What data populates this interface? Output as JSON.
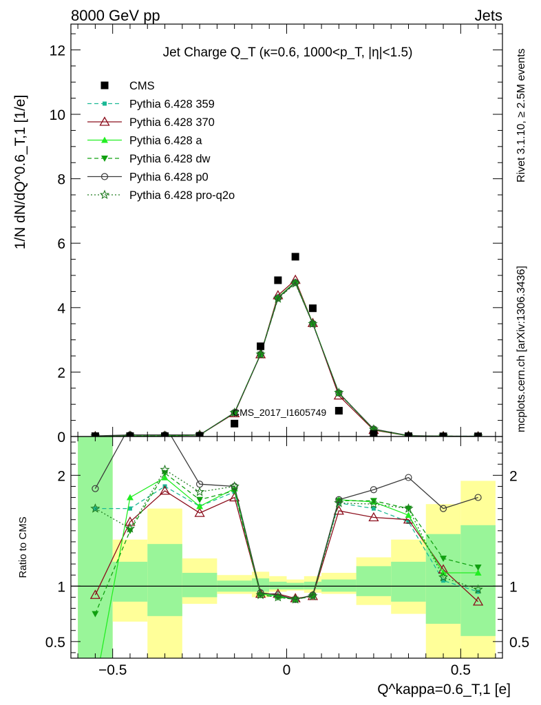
{
  "header": {
    "energy_label": "8000 GeV pp",
    "process_label": "Jets",
    "rivet_label": "Rivet 3.1.10, ≥ 2.5M events",
    "source_label": "mcplots.cern.ch [arXiv:1306.3436]",
    "analysis_id": "CMS_2017_I1605749"
  },
  "chart_data": [
    {
      "type": "scatter",
      "panel": "main",
      "title": "Jet Charge Q_T (κ=0.6, 1000<p_T, |η|<1.5)",
      "ylabel": "1/N dN/dQ^0.6_T,1 [1/e]",
      "xlim": [
        -0.62,
        0.62
      ],
      "ylim": [
        0,
        12.8
      ],
      "yticks": [
        0,
        2,
        4,
        6,
        8,
        10,
        12
      ],
      "xticks": [
        -0.5,
        0,
        0.5
      ],
      "legend_position": "upper-left",
      "x": [
        -0.55,
        -0.45,
        -0.35,
        -0.25,
        -0.15,
        -0.075,
        -0.025,
        0.025,
        0.075,
        0.15,
        0.25,
        0.35,
        0.45,
        0.55
      ],
      "series": [
        {
          "name": "CMS",
          "color": "#000000",
          "marker": "square",
          "values": [
            0.01,
            0.01,
            0.01,
            0.02,
            0.4,
            2.8,
            4.85,
            5.58,
            3.98,
            0.8,
            0.08,
            0.01,
            0.005,
            0.005
          ]
        },
        {
          "name": "Pythia 6.428 359",
          "color": "#1ab894",
          "marker": "small-square",
          "dash": "6,4",
          "values": [
            0.02,
            0.02,
            0.02,
            0.05,
            0.74,
            2.55,
            4.3,
            4.78,
            3.5,
            1.34,
            0.22,
            0.02,
            0.01,
            0.01
          ]
        },
        {
          "name": "Pythia 6.428 370",
          "color": "#8b0d1b",
          "marker": "open-triangle",
          "values": [
            0.01,
            0.02,
            0.02,
            0.05,
            0.72,
            2.55,
            4.38,
            4.86,
            3.52,
            1.27,
            0.2,
            0.02,
            0.01,
            0.005
          ]
        },
        {
          "name": "Pythia 6.428 a",
          "color": "#22ee22",
          "marker": "triangle",
          "values": [
            0.01,
            0.02,
            0.02,
            0.05,
            0.74,
            2.56,
            4.32,
            4.8,
            3.52,
            1.35,
            0.22,
            0.02,
            0.01,
            0.005
          ]
        },
        {
          "name": "Pythia 6.428 dw",
          "color": "#10a010",
          "marker": "triangle-down",
          "dash": "6,4",
          "values": [
            0.01,
            0.02,
            0.02,
            0.05,
            0.73,
            2.55,
            4.28,
            4.77,
            3.5,
            1.35,
            0.22,
            0.02,
            0.01,
            0.005
          ]
        },
        {
          "name": "Pythia 6.428 p0",
          "color": "#3a3a3a",
          "marker": "open-circle",
          "values": [
            0.02,
            0.05,
            0.05,
            0.05,
            0.74,
            2.55,
            4.3,
            4.78,
            3.5,
            1.35,
            0.23,
            0.03,
            0.01,
            0.01
          ]
        },
        {
          "name": "Pythia 6.428 pro-q2o",
          "color": "#1e7a1e",
          "marker": "star",
          "dash": "2,3",
          "values": [
            0.01,
            0.02,
            0.02,
            0.05,
            0.74,
            2.55,
            4.28,
            4.75,
            3.5,
            1.36,
            0.22,
            0.02,
            0.01,
            0.005
          ]
        }
      ]
    },
    {
      "type": "line",
      "panel": "ratio",
      "ylabel": "Ratio to CMS",
      "xlabel": "Q^kappa=0.6_T,1 [e]",
      "xlim": [
        -0.62,
        0.62
      ],
      "ylim": [
        0.35,
        2.35
      ],
      "yticks": [
        0.5,
        1,
        2
      ],
      "xticks": [
        -0.5,
        0,
        0.5
      ],
      "x": [
        -0.55,
        -0.45,
        -0.35,
        -0.25,
        -0.15,
        -0.075,
        -0.025,
        0.025,
        0.075,
        0.15,
        0.25,
        0.35,
        0.45,
        0.55
      ],
      "bands": {
        "edges": [
          -0.6,
          -0.5,
          -0.4,
          -0.3,
          -0.2,
          -0.1,
          -0.05,
          0.0,
          0.05,
          0.1,
          0.2,
          0.3,
          0.4,
          0.5,
          0.6
        ],
        "stat_low": [
          0.35,
          0.86,
          0.73,
          0.9,
          0.95,
          0.95,
          0.97,
          0.97,
          0.97,
          0.95,
          0.91,
          0.86,
          0.66,
          0.55
        ],
        "stat_high": [
          2.35,
          1.22,
          1.38,
          1.12,
          1.05,
          1.07,
          1.04,
          1.03,
          1.04,
          1.06,
          1.18,
          1.22,
          1.47,
          1.55
        ],
        "total_low": [
          0.35,
          0.68,
          0.35,
          0.84,
          0.93,
          0.9,
          0.95,
          0.96,
          0.94,
          0.93,
          0.83,
          0.75,
          0.35,
          0.35
        ],
        "total_high": [
          2.35,
          1.42,
          1.7,
          1.25,
          1.1,
          1.13,
          1.09,
          1.06,
          1.09,
          1.12,
          1.26,
          1.42,
          1.74,
          1.95
        ]
      },
      "series": [
        {
          "name": "Pythia 6.428 359",
          "color": "#1ab894",
          "values": [
            1.7,
            1.7,
            1.9,
            1.72,
            1.85,
            0.93,
            0.91,
            0.88,
            0.92,
            1.75,
            1.7,
            1.58,
            1.05,
            0.95
          ]
        },
        {
          "name": "Pythia 6.428 370",
          "color": "#8b0d1b",
          "values": [
            0.92,
            1.58,
            1.86,
            1.66,
            1.8,
            0.93,
            0.93,
            0.89,
            0.91,
            1.68,
            1.62,
            1.6,
            1.15,
            0.86
          ]
        },
        {
          "name": "Pythia 6.428 a",
          "color": "#22ee22",
          "values": [
            0.1,
            1.8,
            1.98,
            1.72,
            1.88,
            0.93,
            0.91,
            0.88,
            0.92,
            1.78,
            1.76,
            1.64,
            1.12,
            1.12
          ]
        },
        {
          "name": "Pythia 6.428 dw",
          "color": "#10a010",
          "values": [
            0.75,
            1.5,
            2.02,
            1.78,
            1.86,
            0.92,
            0.9,
            0.88,
            0.91,
            1.77,
            1.77,
            1.7,
            1.25,
            1.17
          ]
        },
        {
          "name": "Pythia 6.428 p0",
          "color": "#3a3a3a",
          "values": [
            1.88,
            2.45,
            2.45,
            1.92,
            1.9,
            0.94,
            0.92,
            0.88,
            0.92,
            1.78,
            1.87,
            1.98,
            1.7,
            1.8
          ]
        },
        {
          "name": "Pythia 6.428 pro-q2o",
          "color": "#1e7a1e",
          "values": [
            1.7,
            1.52,
            2.05,
            1.85,
            1.9,
            0.92,
            0.9,
            0.88,
            0.91,
            1.75,
            1.74,
            1.7,
            1.08,
            0.97
          ]
        }
      ]
    }
  ]
}
